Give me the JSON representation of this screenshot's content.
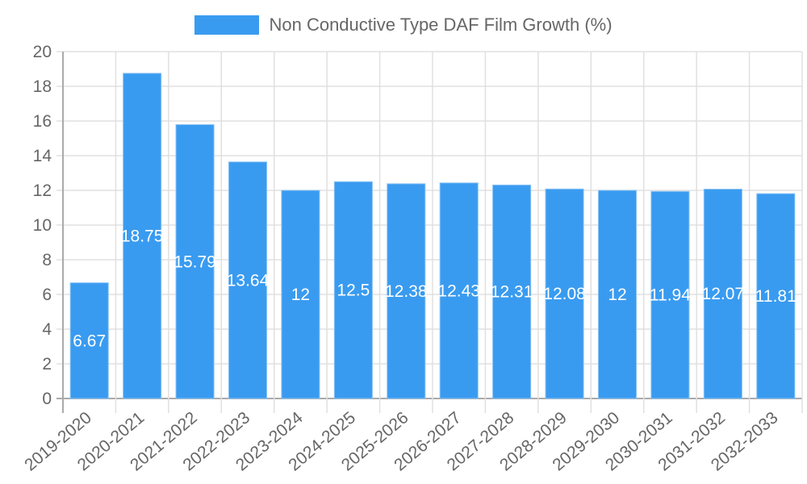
{
  "legend": {
    "label": "Non Conductive Type DAF Film Growth (%)",
    "color": "#399bf0"
  },
  "chart_data": {
    "type": "bar",
    "title": "",
    "xlabel": "",
    "ylabel": "",
    "ylim": [
      0,
      20
    ],
    "yticks": [
      0,
      2,
      4,
      6,
      8,
      10,
      12,
      14,
      16,
      18,
      20
    ],
    "grid": true,
    "legend_position": "top",
    "categories": [
      "2019-2020",
      "2020-2021",
      "2021-2022",
      "2022-2023",
      "2023-2024",
      "2024-2025",
      "2025-2026",
      "2026-2027",
      "2027-2028",
      "2028-2029",
      "2029-2030",
      "2030-2031",
      "2031-2032",
      "2032-2033"
    ],
    "series": [
      {
        "name": "Non Conductive Type DAF Film Growth (%)",
        "color": "#399bf0",
        "values": [
          6.67,
          18.75,
          15.79,
          13.64,
          12,
          12.5,
          12.38,
          12.43,
          12.31,
          12.08,
          12,
          11.94,
          12.07,
          11.81
        ]
      }
    ]
  }
}
